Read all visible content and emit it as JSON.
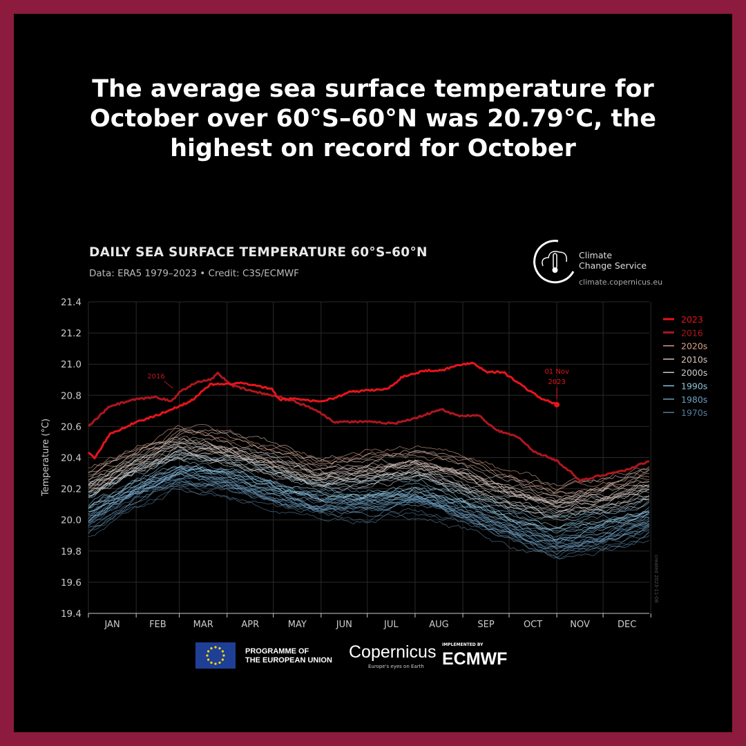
{
  "headline": "The average sea surface temperature for October over 60°S–60°N was 20.79°C, the highest on record for October",
  "logo": {
    "line1": "Climate",
    "line2": "Change Service",
    "url": "climate.copernicus.eu"
  },
  "footer": {
    "programme": "PROGRAMME OF",
    "programme2": "THE EUROPEAN UNION",
    "copernicus": "Copernicus",
    "copernicus_tag": "Europe's eyes on Earth",
    "implemented": "IMPLEMENTED BY",
    "ecmwf": "ECMWF"
  },
  "chart_data": {
    "type": "line",
    "title": "DAILY SEA SURFACE TEMPERATURE 60°S–60°N",
    "subtitle": "Data: ERA5 1979–2023 • Credit: C3S/ECMWF",
    "ylabel": "Temperature (°C)",
    "xlabel": "",
    "ylim": [
      19.4,
      21.4
    ],
    "yticks": [
      "19.4",
      "19.6",
      "19.8",
      "20.0",
      "20.2",
      "20.4",
      "20.6",
      "20.8",
      "21.0",
      "21.2",
      "21.4"
    ],
    "xticks": [
      "JAN",
      "FEB",
      "MAR",
      "APR",
      "MAY",
      "JUN",
      "JUL",
      "AUG",
      "SEP",
      "OCT",
      "NOV",
      "DEC"
    ],
    "grid": true,
    "legend_placement": "right",
    "created": "created 2023-11-06",
    "annotations": {
      "label_2016": "2016",
      "end_label_1": "01 Nov",
      "end_label_2": "2023"
    },
    "series": [
      {
        "name": "2023",
        "color": "#e8141c",
        "width": 3,
        "x": [
          1,
          5,
          15,
          30,
          45,
          60,
          70,
          80,
          90,
          100,
          110,
          120,
          125,
          135,
          150,
          160,
          170,
          180,
          195,
          205,
          220,
          230,
          240,
          250,
          260,
          270,
          280,
          290,
          295,
          305
        ],
        "y": [
          20.43,
          20.4,
          20.55,
          20.62,
          20.67,
          20.73,
          20.78,
          20.87,
          20.87,
          20.88,
          20.86,
          20.84,
          20.77,
          20.78,
          20.76,
          20.78,
          20.82,
          20.83,
          20.84,
          20.92,
          20.96,
          20.96,
          20.99,
          21.01,
          20.95,
          20.95,
          20.88,
          20.81,
          20.78,
          20.74
        ]
      },
      {
        "name": "2016",
        "color": "#b0161e",
        "width": 3,
        "x": [
          1,
          15,
          30,
          45,
          55,
          60,
          70,
          80,
          85,
          95,
          110,
          125,
          135,
          150,
          160,
          180,
          200,
          215,
          230,
          240,
          255,
          265,
          280,
          290,
          305,
          315,
          320,
          335,
          350,
          365
        ],
        "y": [
          20.6,
          20.73,
          20.77,
          20.79,
          20.76,
          20.82,
          20.88,
          20.9,
          20.94,
          20.86,
          20.82,
          20.79,
          20.76,
          20.7,
          20.63,
          20.63,
          20.62,
          20.66,
          20.71,
          20.67,
          20.67,
          20.58,
          20.53,
          20.44,
          20.38,
          20.3,
          20.25,
          20.29,
          20.32,
          20.38
        ]
      },
      {
        "name": "2020s",
        "color": "#d9a08a",
        "x": [
          1,
          32,
          60,
          91,
          121,
          152,
          182,
          213,
          244,
          274,
          305,
          335,
          365
        ],
        "y": [
          20.35,
          20.48,
          20.62,
          20.58,
          20.5,
          20.42,
          20.46,
          20.5,
          20.42,
          20.32,
          20.25,
          20.3,
          20.36
        ]
      },
      {
        "name": "2010s",
        "color": "#d8c2b8",
        "x": [
          1,
          32,
          60,
          91,
          121,
          152,
          182,
          213,
          244,
          274,
          305,
          335,
          365
        ],
        "y": [
          20.25,
          20.4,
          20.52,
          20.48,
          20.4,
          20.32,
          20.35,
          20.4,
          20.32,
          20.22,
          20.15,
          20.2,
          20.27
        ]
      },
      {
        "name": "2000s",
        "color": "#cccccc",
        "x": [
          1,
          32,
          60,
          91,
          121,
          152,
          182,
          213,
          244,
          274,
          305,
          335,
          365
        ],
        "y": [
          20.18,
          20.33,
          20.44,
          20.4,
          20.32,
          20.24,
          20.26,
          20.3,
          20.22,
          20.12,
          20.05,
          20.1,
          20.17
        ]
      },
      {
        "name": "1990s",
        "color": "#8ec3de",
        "x": [
          1,
          32,
          60,
          91,
          121,
          152,
          182,
          213,
          244,
          274,
          305,
          335,
          365
        ],
        "y": [
          20.1,
          20.26,
          20.37,
          20.33,
          20.25,
          20.17,
          20.18,
          20.22,
          20.14,
          20.03,
          19.95,
          20.0,
          20.08
        ]
      },
      {
        "name": "1980s",
        "color": "#6d9ec0",
        "x": [
          1,
          32,
          60,
          91,
          121,
          152,
          182,
          213,
          244,
          274,
          305,
          335,
          365
        ],
        "y": [
          20.02,
          20.2,
          20.3,
          20.27,
          20.19,
          20.11,
          20.12,
          20.15,
          20.07,
          19.96,
          19.86,
          19.92,
          20.0
        ]
      },
      {
        "name": "1970s",
        "color": "#557d9c",
        "x": [
          1,
          32,
          60,
          91,
          121,
          152,
          182,
          213,
          244,
          274,
          305,
          335,
          365
        ],
        "y": [
          19.95,
          20.14,
          20.25,
          20.22,
          20.14,
          20.06,
          20.07,
          20.1,
          20.02,
          19.91,
          19.8,
          19.85,
          19.93
        ]
      }
    ]
  }
}
